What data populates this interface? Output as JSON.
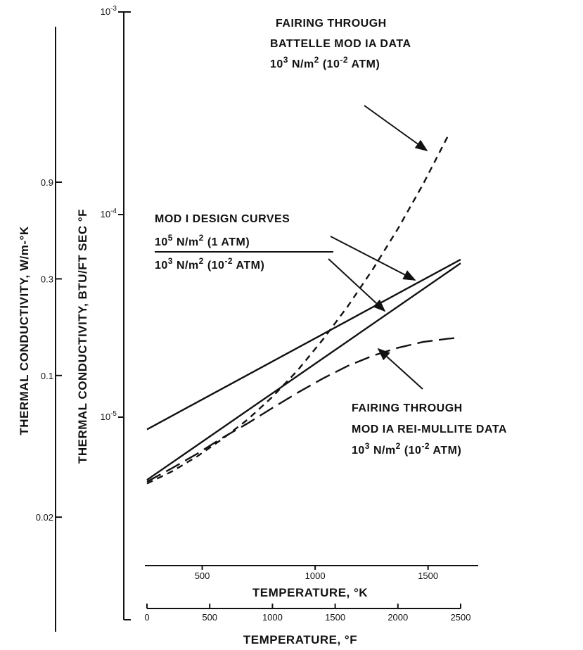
{
  "chart_data": {
    "type": "line",
    "title": "",
    "y_axis_outer": {
      "label": "THERMAL CONDUCTIVITY, W/m-°K",
      "scale": "log",
      "ticks": [
        {
          "value": 0.9,
          "label": "0.9"
        },
        {
          "value": 0.3,
          "label": "0.3"
        },
        {
          "value": 0.1,
          "label": "0.1"
        },
        {
          "value": 0.02,
          "label": "0.02"
        }
      ]
    },
    "y_axis_inner": {
      "label": "THERMAL CONDUCTIVITY, BTU/FT SEC °F",
      "scale": "log",
      "range": [
        1e-06,
        0.001
      ],
      "ticks": [
        {
          "value": 0.001,
          "base": "10",
          "exp": "-3"
        },
        {
          "value": 0.0001,
          "base": "10",
          "exp": "-4"
        },
        {
          "value": 1e-05,
          "base": "10",
          "exp": "-5"
        }
      ]
    },
    "x_axis_K": {
      "label": "TEMPERATURE, °K",
      "ticks": [
        {
          "value": 500,
          "label": "500"
        },
        {
          "value": 1000,
          "label": "1000"
        },
        {
          "value": 1500,
          "label": "1500"
        }
      ]
    },
    "x_axis_F": {
      "label": "TEMPERATURE, °F",
      "range": [
        0,
        2500
      ],
      "ticks": [
        {
          "value": 0,
          "label": "0"
        },
        {
          "value": 500,
          "label": "500"
        },
        {
          "value": 1000,
          "label": "1000"
        },
        {
          "value": 1500,
          "label": "1500"
        },
        {
          "value": 2000,
          "label": "2000"
        },
        {
          "value": 2500,
          "label": "2500"
        }
      ]
    },
    "series": [
      {
        "style": "solid",
        "x": [
          0,
          2500
        ],
        "y": [
          8.7e-06,
          6e-05
        ]
      },
      {
        "style": "solid",
        "x": [
          0,
          2500
        ],
        "y": [
          4.9e-06,
          5.75e-05
        ]
      },
      {
        "style": "short-dash",
        "x": [
          0,
          200,
          400,
          600,
          800,
          1000,
          1200,
          1400,
          1600,
          1800,
          2000,
          2200,
          2400
        ],
        "y": [
          4.7e-06,
          5.4e-06,
          6.4e-06,
          7.8e-06,
          9.7e-06,
          1.26e-05,
          1.7e-05,
          2.41e-05,
          3.52e-05,
          5.37e-05,
          8.51e-05,
          0.000141,
          0.000245
        ]
      },
      {
        "style": "long-dash",
        "x": [
          0,
          200,
          400,
          600,
          800,
          1000,
          1200,
          1400,
          1600,
          1800,
          2000,
          2200,
          2400,
          2500
        ],
        "y": [
          4.8e-06,
          5.6e-06,
          6.6e-06,
          7.9e-06,
          9.3e-06,
          1.11e-05,
          1.32e-05,
          1.55e-05,
          1.79e-05,
          2.01e-05,
          2.2e-05,
          2.35e-05,
          2.44e-05,
          2.47e-05
        ]
      }
    ],
    "annotations": [
      {
        "id": "battelle",
        "lines": [
          {
            "text": "FAIRING THROUGH"
          },
          {
            "text": "BATTELLE MOD IA DATA"
          },
          {
            "text": "N/m",
            "base": "10",
            "exp": "3",
            "sup2": "2",
            "tail": "(10",
            "tail_exp": "-2",
            "tail_end": "ATM)"
          }
        ]
      },
      {
        "id": "design",
        "lines": [
          {
            "text": "MOD I DESIGN CURVES"
          },
          {
            "text": "N/m",
            "base": "10",
            "exp": "5",
            "sup2": "2",
            "tail": "(1 ATM)"
          },
          {
            "text": "N/m",
            "base": "10",
            "exp": "3",
            "sup2": "2",
            "tail": "(10",
            "tail_exp": "-2",
            "tail_end": "ATM)"
          }
        ]
      },
      {
        "id": "rei",
        "lines": [
          {
            "text": "FAIRING THROUGH"
          },
          {
            "text": "MOD IA REI-MULLITE DATA"
          },
          {
            "text": "N/m",
            "base": "10",
            "exp": "3",
            "sup2": "2",
            "tail": "(10",
            "tail_exp": "-2",
            "tail_end": "ATM)"
          }
        ]
      }
    ]
  }
}
